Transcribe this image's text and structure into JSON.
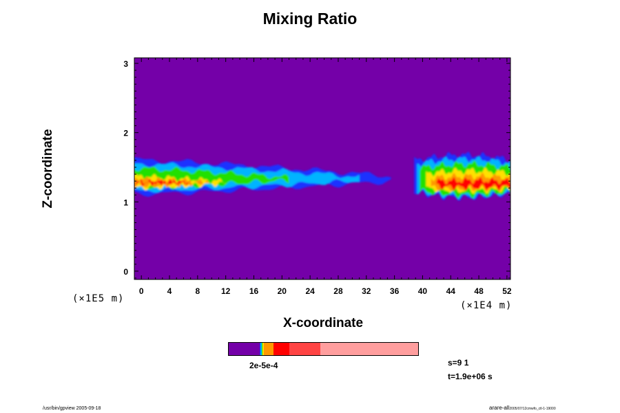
{
  "chart_data": {
    "type": "heatmap",
    "title": "Mixing Ratio",
    "xlabel": "X-coordinate",
    "ylabel": "Z-coordinate",
    "x_scale_note": "(×1E4 m)",
    "y_scale_note": "(×1E5 m)",
    "xlim": [
      -1,
      52.5
    ],
    "ylim": [
      -0.12,
      3.08
    ],
    "x_ticks": [
      0,
      4,
      8,
      12,
      16,
      20,
      24,
      28,
      32,
      36,
      40,
      44,
      48,
      52
    ],
    "y_ticks": [
      0,
      1,
      2,
      3
    ],
    "background_color": "#7400a8",
    "colorbar": {
      "segments": [
        {
          "color": "#7400a8",
          "fraction": 0.165
        },
        {
          "color": "#1a33ff",
          "fraction": 0.004
        },
        {
          "color": "#00b4ff",
          "fraction": 0.004
        },
        {
          "color": "#22e000",
          "fraction": 0.004
        },
        {
          "color": "#ffe000",
          "fraction": 0.008
        },
        {
          "color": "#ff9800",
          "fraction": 0.05
        },
        {
          "color": "#ff0000",
          "fraction": 0.085
        },
        {
          "color": "#ff4444",
          "fraction": 0.165
        },
        {
          "color": "#ff9e9e",
          "fraction": 0.515
        }
      ],
      "tick_label": "2e-5e-4"
    },
    "plumes": [
      {
        "name": "left",
        "x_range": [
          -1,
          35
        ],
        "z_center": 1.35,
        "peak_level": "red"
      },
      {
        "name": "right",
        "x_range": [
          39,
          52.5
        ],
        "z_center": 1.35,
        "peak_level": "red"
      }
    ]
  },
  "info": {
    "s": "s=9 1",
    "t": "t=1.9e+06 s"
  },
  "footer": {
    "left": "/usr/bin/gpview 2005-09-18",
    "right_main": "arare-all",
    "right_small": "2005/07/12cmwfo_ctl-1-19000"
  }
}
